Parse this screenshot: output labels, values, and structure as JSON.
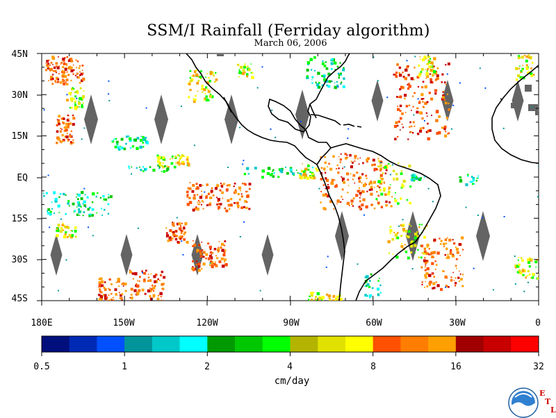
{
  "title": "SSM/I Rainfall (Ferriday algorithm)",
  "subtitle": "March 06, 2006",
  "lat_labels": [
    "45N",
    "30N",
    "15N",
    "EQ",
    "15S",
    "30S",
    "45S"
  ],
  "lon_labels": [
    "180E",
    "150W",
    "120W",
    "90W",
    "60W",
    "30W",
    "0"
  ],
  "colorbar": {
    "tick_labels": [
      "0.5",
      "1",
      "2",
      "4",
      "8",
      "16",
      "32"
    ],
    "units": "cm/day",
    "colors": [
      "#000f7c",
      "#0029b4",
      "#0050ff",
      "#00959a",
      "#00c8c8",
      "#00ffff",
      "#009a00",
      "#00c800",
      "#00ff00",
      "#b4b400",
      "#e1e100",
      "#ffff00",
      "#ff5000",
      "#ff7d00",
      "#ffa000",
      "#a00000",
      "#c80000",
      "#ff0000"
    ]
  },
  "logo": {
    "name": "NOAA",
    "letters": [
      "E",
      "T",
      "L"
    ]
  },
  "map": {
    "lon_range": [
      -180,
      0
    ],
    "lat_range": [
      -45,
      45
    ],
    "no_data_color": "#646464",
    "coastline_color": "#000000"
  }
}
